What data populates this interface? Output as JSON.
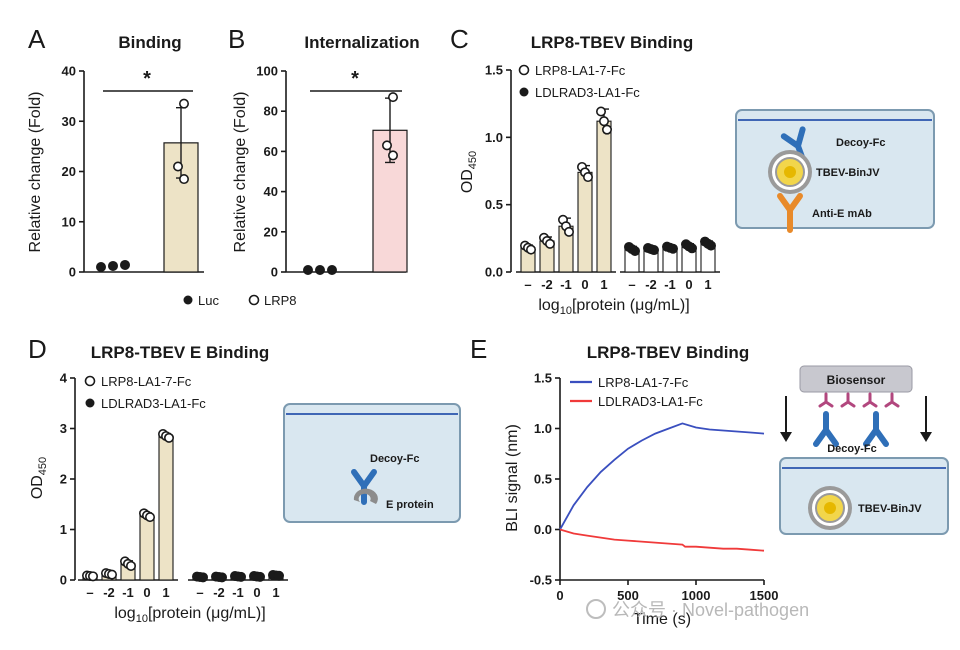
{
  "panels": {
    "A": {
      "label": "A"
    },
    "B": {
      "label": "B"
    },
    "C": {
      "label": "C"
    },
    "D": {
      "label": "D"
    },
    "E": {
      "label": "E"
    }
  },
  "legend_ab": {
    "luc": "Luc",
    "lrp8": "LRP8"
  },
  "diagram_c": {
    "decoy": "Decoy-Fc",
    "virus": "TBEV-BinJV",
    "mab": "Anti-E mAb"
  },
  "diagram_d": {
    "decoy": "Decoy-Fc",
    "protein": "E protein"
  },
  "diagram_e": {
    "biosensor": "Biosensor",
    "decoy": "Decoy-Fc",
    "virus": "TBEV-BinJV"
  },
  "watermark": {
    "text": "公众号 · Novel-pathogen"
  },
  "colors": {
    "tan": "#ede3c6",
    "pink": "#f8d8d8",
    "blue": "#3a4fbf",
    "red": "#f03a3a",
    "diagram_bg": "#d9e7f0",
    "decoy": "#2f6fb8",
    "mab": "#e88a2a"
  },
  "chart_data": [
    {
      "id": "A",
      "type": "bar",
      "title": "Binding",
      "ylabel": "Relative change (Fold)",
      "ylim": [
        0,
        40
      ],
      "yticks": [
        0,
        10,
        20,
        30,
        40
      ],
      "categories": [
        "Luc",
        "LRP8"
      ],
      "values": [
        1.2,
        25.7
      ],
      "error": [
        0.2,
        7.0
      ],
      "points": [
        [
          1.0,
          1.2,
          1.4
        ],
        [
          33.5,
          21.0,
          18.5
        ]
      ],
      "significance": "*"
    },
    {
      "id": "B",
      "type": "bar",
      "title": "Internalization",
      "ylabel": "Relative change (Fold)",
      "ylim": [
        0,
        100
      ],
      "yticks": [
        0,
        20,
        40,
        60,
        80,
        100
      ],
      "categories": [
        "Luc",
        "LRP8"
      ],
      "values": [
        1.0,
        70.5
      ],
      "error": [
        0.3,
        16.0
      ],
      "points": [
        [
          1.0,
          1.0,
          1.0
        ],
        [
          87.0,
          63.0,
          58.0
        ]
      ],
      "significance": "*"
    },
    {
      "id": "C",
      "type": "bar",
      "title": "LRP8-TBEV Binding",
      "ylabel": "OD450",
      "ylabel_main": "OD",
      "ylabel_sub": "450",
      "ylim": [
        0,
        1.5
      ],
      "yticks": [
        "0.0",
        "0.5",
        "1.0",
        "1.5"
      ],
      "xlabel_pre": "log",
      "xlabel_sub": "10",
      "xlabel_post": "[protein (μg/mL)]",
      "tick_labels": [
        "–",
        "-2",
        "-1",
        "0",
        "1"
      ],
      "series": [
        {
          "name": "LRP8-LA1-7-Fc",
          "values": [
            0.18,
            0.23,
            0.34,
            0.74,
            1.12
          ],
          "error": [
            0.02,
            0.03,
            0.06,
            0.05,
            0.09
          ]
        },
        {
          "name": "LDLRAD3-LA1-Fc",
          "values": [
            0.17,
            0.17,
            0.18,
            0.19,
            0.21
          ],
          "error": [
            0.02,
            0.01,
            0.01,
            0.02,
            0.02
          ]
        }
      ]
    },
    {
      "id": "D",
      "type": "bar",
      "title": "LRP8-TBEV E Binding",
      "ylabel": "OD450",
      "ylabel_main": "OD",
      "ylabel_sub": "450",
      "ylim": [
        0,
        4
      ],
      "yticks": [
        "0",
        "1",
        "2",
        "3",
        "4"
      ],
      "xlabel_pre": "log",
      "xlabel_sub": "10",
      "xlabel_post": "[protein (μg/mL)]",
      "tick_labels": [
        "–",
        "-2",
        "-1",
        "0",
        "1"
      ],
      "series": [
        {
          "name": "LRP8-LA1-7-Fc",
          "values": [
            0.08,
            0.12,
            0.32,
            1.28,
            2.85
          ],
          "error": [
            0.01,
            0.02,
            0.06,
            0.05,
            0.05
          ]
        },
        {
          "name": "LDLRAD3-LA1-Fc",
          "values": [
            0.06,
            0.06,
            0.07,
            0.07,
            0.09
          ],
          "error": [
            0.01,
            0.01,
            0.01,
            0.01,
            0.01
          ]
        }
      ]
    },
    {
      "id": "E",
      "type": "line",
      "title": "LRP8-TBEV Binding",
      "ylabel": "BLI signal (nm)",
      "xlabel": "Time (s)",
      "xlim": [
        0,
        1500
      ],
      "ylim": [
        -0.5,
        1.5
      ],
      "xticks": [
        0,
        500,
        1000,
        1500
      ],
      "yticks": [
        "-0.5",
        "0.0",
        "0.5",
        "1.0",
        "1.5"
      ],
      "series": [
        {
          "name": "LRP8-LA1-7-Fc",
          "color": "#3a4fbf",
          "x": [
            0,
            100,
            200,
            300,
            400,
            500,
            600,
            700,
            800,
            900,
            1000,
            1100,
            1200,
            1300,
            1400,
            1500
          ],
          "y": [
            0.0,
            0.24,
            0.42,
            0.57,
            0.69,
            0.8,
            0.88,
            0.95,
            1.0,
            1.05,
            1.01,
            0.99,
            0.98,
            0.97,
            0.96,
            0.95
          ]
        },
        {
          "name": "LDLRAD3-LA1-Fc",
          "color": "#f03a3a",
          "x": [
            0,
            100,
            200,
            300,
            400,
            500,
            600,
            700,
            800,
            900,
            920,
            1000,
            1100,
            1200,
            1300,
            1400,
            1500
          ],
          "y": [
            0.0,
            -0.04,
            -0.06,
            -0.08,
            -0.1,
            -0.11,
            -0.12,
            -0.13,
            -0.14,
            -0.15,
            -0.17,
            -0.17,
            -0.18,
            -0.19,
            -0.19,
            -0.2,
            -0.21
          ]
        }
      ]
    }
  ]
}
